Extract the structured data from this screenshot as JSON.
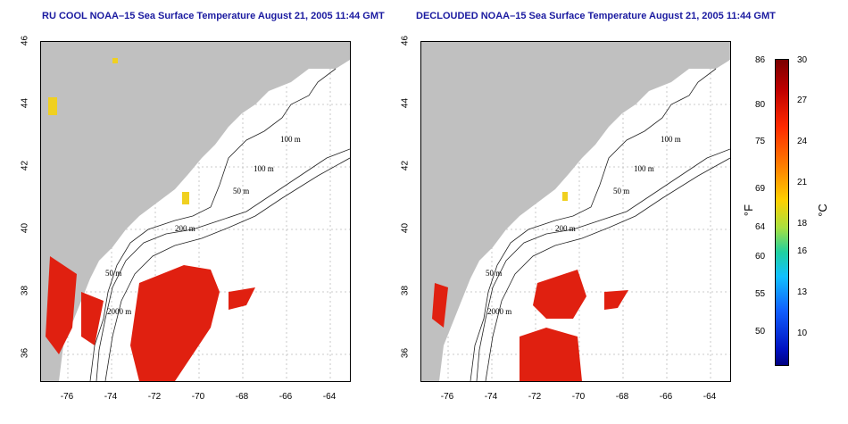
{
  "titles": {
    "left": "RU COOL NOAA–15 Sea Surface Temperature August 21, 2005 11:44 GMT",
    "right": "DECLOUDED NOAA–15 Sea Surface Temperature August 21, 2005 11:44 GMT"
  },
  "axes": {
    "lat_ticks": [
      "46",
      "44",
      "42",
      "40",
      "38",
      "36"
    ],
    "lon_ticks": [
      "-76",
      "-74",
      "-72",
      "-70",
      "-68",
      "-66",
      "-64"
    ]
  },
  "contour_labels": {
    "left": [
      "100 m",
      "100 m",
      "50 m",
      "200 m",
      "50 m",
      "2000 m"
    ],
    "right": [
      "100 m",
      "100 m",
      "50 m",
      "200 m",
      "50 m",
      "2000 m"
    ]
  },
  "colorbar": {
    "fahrenheit": [
      "86",
      "80",
      "75",
      "69",
      "64",
      "60",
      "55",
      "50"
    ],
    "celsius": [
      "30",
      "27",
      "24",
      "21",
      "18",
      "16",
      "13",
      "10"
    ],
    "unit_f": "°F",
    "unit_c": "°C"
  },
  "colors": {
    "land": "#c0c0c0",
    "warm_water": "#e02010",
    "title": "#1a1aa0"
  }
}
